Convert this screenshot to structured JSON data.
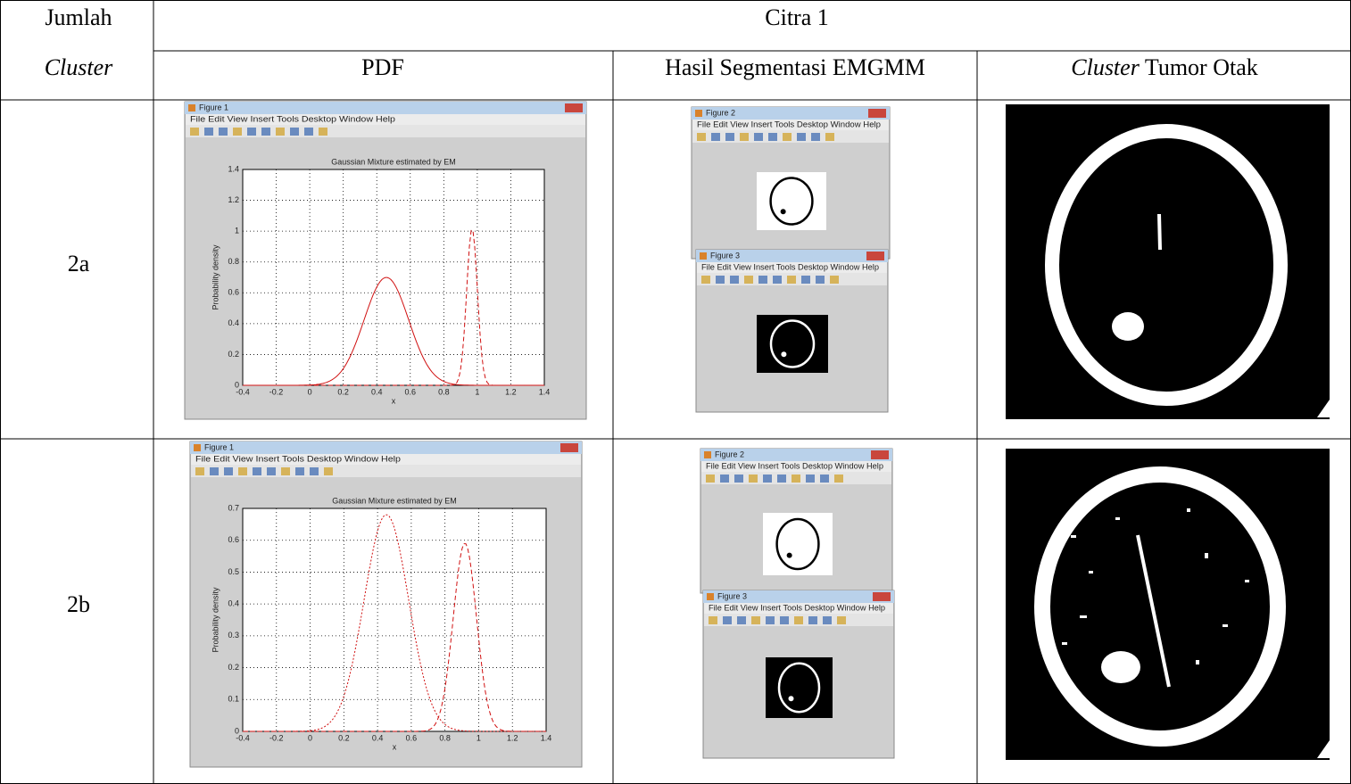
{
  "table": {
    "header_left": [
      "Jumlah",
      "Cluster"
    ],
    "group_title": "Citra 1",
    "columns": [
      "PDF",
      "Hasil Segmentasi EMGMM"
    ],
    "column_3": {
      "emphasis": "Cluster",
      "text": "Tumor Otak"
    },
    "rows": [
      {
        "label": "2a",
        "pdf": {
          "window_title": "Figure 1",
          "menu": "File Edit View Insert Tools Desktop Window Help",
          "plot_title": "Gaussian Mixture estimated by EM",
          "ylabel": "Probability density",
          "xlabel": "x",
          "xticks": [
            -0.4,
            -0.2,
            0,
            0.2,
            0.4,
            0.6,
            0.8,
            1,
            1.2,
            1.4
          ],
          "yticks": [
            0,
            0.2,
            0.4,
            0.6,
            0.8,
            1,
            1.2,
            1.4
          ]
        },
        "segmentation": {
          "windows": [
            "Figure 2",
            "Figure 3"
          ],
          "menu": "File Edit View Insert Tools Desktop Window Help"
        }
      },
      {
        "label": "2b",
        "pdf": {
          "window_title": "Figure 1",
          "menu": "File Edit View Insert Tools Desktop Window Help",
          "plot_title": "Gaussian Mixture estimated by EM",
          "ylabel": "Probability density",
          "xlabel": "x",
          "xticks": [
            -0.4,
            -0.2,
            0,
            0.2,
            0.4,
            0.6,
            0.8,
            1,
            1.2,
            1.4
          ],
          "yticks": [
            0,
            0.1,
            0.2,
            0.3,
            0.4,
            0.5,
            0.6,
            0.7
          ]
        },
        "segmentation": {
          "windows": [
            "Figure 2",
            "Figure 3"
          ],
          "menu": "File Edit View Insert Tools Desktop Window Help"
        }
      }
    ]
  }
}
